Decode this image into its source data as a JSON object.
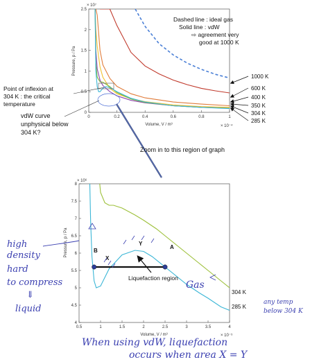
{
  "chart_data": [
    {
      "type": "line",
      "title": "",
      "xlabel": "Volume, V / m³",
      "ylabel": "Pressure, p / Pa",
      "x_multiplier": "× 10⁻⁴",
      "y_multiplier": "× 10⁷",
      "xlim": [
        0,
        1
      ],
      "ylim": [
        0,
        2.5
      ],
      "xticks": [
        "0",
        "0.2",
        "0.4",
        "0.6",
        "0.8",
        "1"
      ],
      "yticks": [
        "0",
        "0.5",
        "1",
        "1.5",
        "2",
        "2.5"
      ],
      "grid": false,
      "series": [
        {
          "name": "1000 K",
          "color": "#c0392b",
          "x": [
            0.08,
            0.1,
            0.15,
            0.2,
            0.3,
            0.4,
            0.5,
            0.6,
            0.7,
            0.8,
            0.9,
            1.0
          ],
          "y": [
            2.5,
            2.5,
            2.5,
            2.1,
            1.45,
            1.12,
            0.93,
            0.78,
            0.67,
            0.58,
            0.52,
            0.47
          ]
        },
        {
          "name": "1000 K ideal gas",
          "color": "#4a7fd6",
          "style": "dashed",
          "x": [
            0.33,
            0.4,
            0.5,
            0.6,
            0.7,
            0.8,
            0.9,
            1.0
          ],
          "y": [
            2.5,
            2.08,
            1.66,
            1.39,
            1.19,
            1.04,
            0.92,
            0.83
          ]
        },
        {
          "name": "600 K",
          "color": "#e07b39",
          "x": [
            0.05,
            0.06,
            0.08,
            0.1,
            0.15,
            0.2,
            0.3,
            0.4,
            0.6,
            0.8,
            1.0
          ],
          "y": [
            2.5,
            2.35,
            1.5,
            1.15,
            0.82,
            0.63,
            0.45,
            0.35,
            0.25,
            0.2,
            0.16
          ]
        },
        {
          "name": "400 K",
          "color": "#f2c12e",
          "x": [
            0.045,
            0.05,
            0.06,
            0.08,
            0.1,
            0.15,
            0.2,
            0.3,
            0.4,
            0.6,
            0.8,
            1.0
          ],
          "y": [
            2.5,
            2.0,
            1.6,
            1.1,
            0.85,
            0.58,
            0.45,
            0.33,
            0.26,
            0.18,
            0.14,
            0.12
          ]
        },
        {
          "name": "350 K",
          "color": "#8e44ad",
          "x": [
            0.045,
            0.05,
            0.06,
            0.08,
            0.1,
            0.15,
            0.2,
            0.3,
            0.4,
            0.6,
            0.8,
            1.0
          ],
          "y": [
            2.5,
            1.5,
            1.05,
            0.78,
            0.65,
            0.5,
            0.4,
            0.29,
            0.23,
            0.16,
            0.12,
            0.1
          ]
        },
        {
          "name": "304 K",
          "color": "#7fb83a",
          "x": [
            0.045,
            0.05,
            0.06,
            0.08,
            0.1,
            0.15,
            0.2,
            0.3,
            0.4,
            0.6,
            0.8,
            1.0
          ],
          "y": [
            2.5,
            1.2,
            0.85,
            0.74,
            0.73,
            0.62,
            0.48,
            0.32,
            0.24,
            0.16,
            0.12,
            0.1
          ]
        },
        {
          "name": "285 K",
          "color": "#3bb6d6",
          "x": [
            0.045,
            0.05,
            0.06,
            0.07,
            0.08,
            0.1,
            0.12,
            0.15,
            0.2,
            0.3,
            0.4,
            0.6,
            0.8,
            1.0
          ],
          "y": [
            2.5,
            1.0,
            0.62,
            0.5,
            0.5,
            0.58,
            0.62,
            0.6,
            0.5,
            0.34,
            0.25,
            0.16,
            0.12,
            0.09
          ]
        }
      ],
      "annotations": [
        "Dashed line : ideal gas",
        "Solid line : vdW",
        "⇨ agreement very",
        "good at 1000 K",
        "Point of inflexion at",
        "304 K : the critical",
        "temperature",
        "vdW curve",
        "unphysical below",
        "304 K?",
        "Zoom in to this region of graph"
      ]
    },
    {
      "type": "line",
      "title": "",
      "xlabel": "Volume, V / m³",
      "ylabel": "Pressure, p / Pa",
      "x_multiplier": "× 10⁻⁵",
      "y_multiplier": "× 10⁶",
      "xlim": [
        0.5,
        4
      ],
      "ylim": [
        4,
        8
      ],
      "xticks": [
        "0.5",
        "1",
        "1.5",
        "2",
        "2.5",
        "3",
        "3.5",
        "4"
      ],
      "yticks": [
        "4",
        "4.5",
        "5",
        "5.5",
        "6",
        "6.5",
        "7",
        "7.5",
        "8"
      ],
      "grid": false,
      "series": [
        {
          "name": "304 K",
          "color": "#9dc03a",
          "x": [
            0.98,
            1.0,
            1.1,
            1.2,
            1.3,
            1.5,
            1.8,
            2.0,
            2.3,
            2.5,
            2.8,
            3.0,
            3.3,
            3.5,
            3.8,
            4.0
          ],
          "y": [
            8.0,
            7.75,
            7.45,
            7.38,
            7.38,
            7.3,
            7.1,
            6.95,
            6.7,
            6.5,
            6.2,
            6.0,
            5.7,
            5.5,
            5.2,
            5.0
          ]
        },
        {
          "name": "285 K",
          "color": "#3bb6d6",
          "x": [
            0.75,
            0.77,
            0.8,
            0.85,
            0.9,
            1.0,
            1.2,
            1.5,
            1.8,
            2.0,
            2.2,
            2.5,
            2.8,
            3.0,
            3.3,
            3.5,
            3.8,
            4.0
          ],
          "y": [
            8.0,
            6.9,
            5.9,
            5.2,
            5.0,
            5.05,
            5.55,
            5.95,
            6.08,
            6.05,
            5.9,
            5.6,
            5.3,
            5.1,
            4.85,
            4.7,
            4.45,
            4.35
          ]
        }
      ],
      "tie_line": {
        "x": [
          0.85,
          2.5
        ],
        "y": [
          5.6,
          5.6
        ]
      },
      "point_labels": [
        "A",
        "B",
        "X",
        "Y"
      ],
      "annotations": [
        "Liquefaction region"
      ],
      "curve_labels": [
        "304 K",
        "285 K"
      ]
    }
  ],
  "handwriting": {
    "left_note": [
      "high",
      "density",
      "hard",
      "to compress",
      "⇓",
      "liquid"
    ],
    "gas": "Gas",
    "right_note": [
      "any temp",
      "below 304 K"
    ],
    "bottom_note": [
      "When using vdW, liquefaction",
      "occurs when area X = Y"
    ]
  }
}
